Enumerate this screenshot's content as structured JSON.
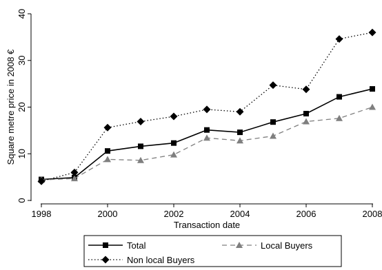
{
  "chart_data": {
    "type": "line",
    "title": "",
    "xlabel": "Transaction date",
    "ylabel": "Square metre price in 2008 €",
    "x": [
      1998,
      1999,
      2000,
      2001,
      2002,
      2003,
      2004,
      2005,
      2006,
      2007,
      2008
    ],
    "xlim": [
      1998,
      2008
    ],
    "ylim": [
      0,
      40
    ],
    "x_ticks": [
      "1998",
      "2000",
      "2002",
      "2004",
      "2006",
      "2008"
    ],
    "y_ticks": [
      "0",
      "10",
      "20",
      "30",
      "40"
    ],
    "grid": false,
    "legend_position": "bottom",
    "series": [
      {
        "name": "Total",
        "marker": "square",
        "line_style": "solid",
        "values": [
          4.5,
          4.9,
          10.6,
          11.6,
          12.3,
          15.1,
          14.6,
          16.8,
          18.6,
          22.2,
          23.9
        ]
      },
      {
        "name": "Local Buyers",
        "marker": "triangle",
        "line_style": "dashed",
        "color": "#7f7f7f",
        "values": [
          4.4,
          4.7,
          8.8,
          8.6,
          9.8,
          13.4,
          12.8,
          13.8,
          16.9,
          17.6,
          20.0
        ]
      },
      {
        "name": "Non local Buyers",
        "marker": "diamond",
        "line_style": "dotted",
        "values": [
          4.1,
          6.0,
          15.6,
          16.9,
          18.0,
          19.5,
          19.0,
          24.7,
          23.8,
          34.6,
          36.0
        ]
      }
    ]
  }
}
